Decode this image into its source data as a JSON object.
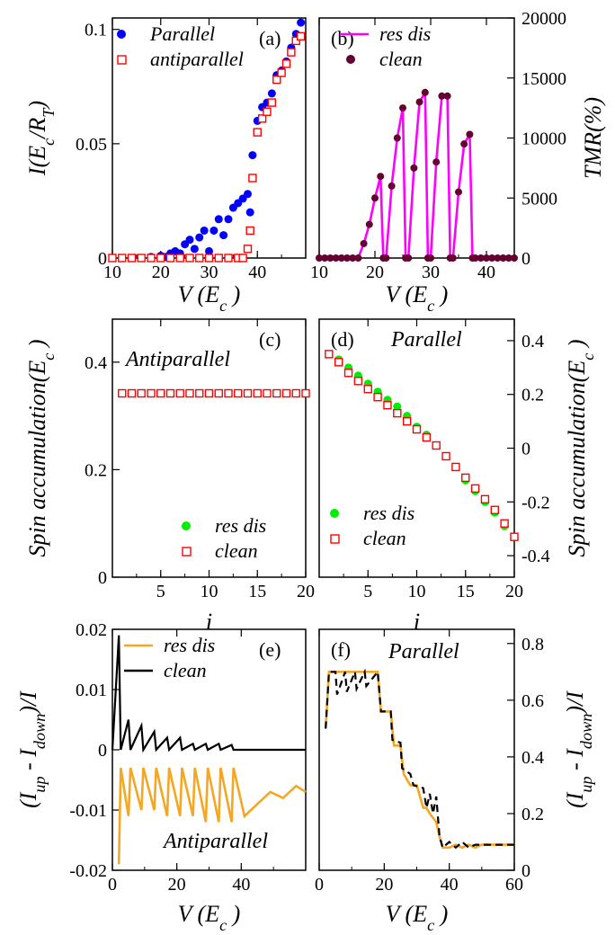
{
  "colors": {
    "blue": "#0000ff",
    "red": "#ff0000",
    "magenta": "#ff00ff",
    "maroon": "#660033",
    "green": "#00ee00",
    "orange": "#f5a623",
    "black": "#000000"
  },
  "chart_data": [
    {
      "id": "a",
      "type": "scatter",
      "panel_label": "(a)",
      "xlabel": "V (E_c )",
      "ylabel": "I(E_c/R_T)",
      "xlim": [
        10,
        50
      ],
      "ylim": [
        0,
        0.105
      ],
      "xticks": [
        10,
        20,
        30,
        40
      ],
      "yticks": [
        0,
        0.05,
        0.1
      ],
      "legend_position": "top-left",
      "series": [
        {
          "name": "Parallel",
          "marker": "circle",
          "color": "#0000ff",
          "x": [
            18,
            20,
            21,
            22,
            23,
            24,
            25,
            26,
            27,
            28,
            29,
            30,
            31,
            32,
            33,
            34,
            35,
            36,
            37,
            38,
            38.5,
            39,
            40,
            41,
            42,
            43,
            44,
            45,
            46,
            47,
            48,
            49
          ],
          "y": [
            0.0005,
            0.001,
            0.0005,
            0.002,
            0.003,
            0.002,
            0.006,
            0.008,
            0.004,
            0.009,
            0.012,
            0.003,
            0.012,
            0.017,
            0.01,
            0.017,
            0.022,
            0.024,
            0.026,
            0.028,
            0.02,
            0.045,
            0.06,
            0.066,
            0.068,
            0.072,
            0.08,
            0.082,
            0.086,
            0.092,
            0.098,
            0.103
          ]
        },
        {
          "name": "antiparallel",
          "marker": "square",
          "color": "#ff0000",
          "x": [
            10,
            12,
            14,
            16,
            18,
            20,
            22,
            24,
            26,
            28,
            30,
            32,
            34,
            36,
            37,
            38,
            38.5,
            39,
            40,
            41,
            42,
            43,
            44,
            45,
            46,
            47,
            48,
            49
          ],
          "y": [
            0,
            0,
            0,
            0,
            0,
            0,
            0,
            0,
            0,
            0,
            0,
            0,
            0,
            0,
            0,
            0.004,
            0.012,
            0.035,
            0.055,
            0.061,
            0.064,
            0.068,
            0.078,
            0.081,
            0.085,
            0.09,
            0.095,
            0.097
          ]
        }
      ]
    },
    {
      "id": "b",
      "type": "scatter",
      "panel_label": "(b)",
      "xlabel": "V (E_c )",
      "ylabel": "TMR(%)",
      "xlim": [
        10,
        45
      ],
      "ylim": [
        0,
        20000
      ],
      "xticks": [
        10,
        20,
        30,
        40
      ],
      "yticks": [
        0,
        5000,
        10000,
        15000,
        20000
      ],
      "legend_position": "top-center",
      "series": [
        {
          "name": "res dis",
          "style": "line",
          "color": "#ff00ff",
          "x": [
            10,
            17,
            18,
            19,
            20,
            21,
            21.5,
            22,
            23,
            24,
            25,
            25.5,
            26,
            27,
            28,
            29,
            29.5,
            30,
            31,
            32,
            33,
            33.5,
            34,
            35,
            36,
            37,
            37.5,
            38,
            40,
            45
          ],
          "y": [
            0,
            0,
            1200,
            2800,
            5000,
            6800,
            0,
            0,
            6000,
            10000,
            12500,
            0,
            0,
            7500,
            13000,
            13800,
            0,
            0,
            8000,
            13500,
            13500,
            0,
            0,
            5500,
            9500,
            10300,
            0,
            0,
            0,
            0
          ]
        },
        {
          "name": "clean",
          "style": "marker",
          "color": "#660033",
          "x": [
            10,
            11,
            12,
            13,
            14,
            15,
            16,
            17,
            18,
            19,
            20,
            21,
            21.5,
            22,
            23,
            24,
            25,
            25.5,
            26,
            27,
            28,
            29,
            29.5,
            30,
            31,
            32,
            33,
            33.5,
            34,
            35,
            36,
            37,
            37.5,
            38,
            39,
            40,
            41,
            42,
            43,
            44,
            45
          ],
          "y": [
            0,
            0,
            0,
            0,
            0,
            0,
            0,
            0,
            1200,
            2800,
            5000,
            6800,
            0,
            0,
            6000,
            10000,
            12500,
            0,
            0,
            7500,
            13000,
            13800,
            0,
            0,
            8000,
            13500,
            13500,
            0,
            0,
            5500,
            9500,
            10300,
            0,
            0,
            0,
            0,
            0,
            0,
            0,
            0,
            0
          ]
        }
      ]
    },
    {
      "id": "c",
      "type": "scatter",
      "panel_label": "(c)",
      "title": "Antiparallel",
      "xlabel": "i",
      "ylabel": "Spin accumulation(E_c )",
      "xlim": [
        0,
        20
      ],
      "ylim": [
        0,
        0.48
      ],
      "xticks": [
        5,
        10,
        15,
        20
      ],
      "yticks": [
        0,
        0.2,
        0.4
      ],
      "legend_position": "bottom-right",
      "series": [
        {
          "name": "res dis",
          "marker": "circle",
          "color": "#00ee00",
          "x": [
            1,
            2,
            3,
            4,
            5,
            6,
            7,
            8,
            9,
            10,
            11,
            12,
            13,
            14,
            15,
            16,
            17,
            18,
            19,
            20
          ],
          "y": [
            0.342,
            0.342,
            0.342,
            0.342,
            0.342,
            0.342,
            0.342,
            0.342,
            0.342,
            0.342,
            0.342,
            0.342,
            0.342,
            0.342,
            0.342,
            0.342,
            0.342,
            0.342,
            0.342,
            0.342
          ]
        },
        {
          "name": "clean",
          "marker": "square",
          "color": "#ff0000",
          "x": [
            1,
            2,
            3,
            4,
            5,
            6,
            7,
            8,
            9,
            10,
            11,
            12,
            13,
            14,
            15,
            16,
            17,
            18,
            19,
            20
          ],
          "y": [
            0.342,
            0.342,
            0.342,
            0.342,
            0.342,
            0.342,
            0.342,
            0.342,
            0.342,
            0.342,
            0.342,
            0.342,
            0.342,
            0.342,
            0.342,
            0.342,
            0.342,
            0.342,
            0.342,
            0.342
          ]
        }
      ]
    },
    {
      "id": "d",
      "type": "scatter",
      "panel_label": "(d)",
      "title": "Parallel",
      "xlabel": "i",
      "ylabel": "Spin accumulation(E_c )",
      "xlim": [
        0,
        20
      ],
      "ylim": [
        -0.48,
        0.48
      ],
      "xticks": [
        5,
        10,
        15,
        20
      ],
      "yticks": [
        -0.4,
        -0.2,
        0,
        0.2,
        0.4
      ],
      "legend_position": "bottom-left",
      "series": [
        {
          "name": "res dis",
          "marker": "circle",
          "color": "#00ee00",
          "x": [
            1,
            2,
            3,
            4,
            5,
            6,
            7,
            8,
            9,
            10,
            11,
            12,
            13,
            14,
            15,
            16,
            17,
            18,
            19,
            20
          ],
          "y": [
            0.35,
            0.33,
            0.3,
            0.27,
            0.24,
            0.21,
            0.18,
            0.155,
            0.12,
            0.08,
            0.05,
            0.01,
            -0.03,
            -0.07,
            -0.12,
            -0.16,
            -0.2,
            -0.24,
            -0.29,
            -0.33
          ]
        },
        {
          "name": "clean",
          "marker": "square",
          "color": "#ff0000",
          "x": [
            1,
            2,
            3,
            4,
            5,
            6,
            7,
            8,
            9,
            10,
            11,
            12,
            13,
            14,
            15,
            16,
            17,
            18,
            19,
            20
          ],
          "y": [
            0.35,
            0.32,
            0.28,
            0.25,
            0.22,
            0.19,
            0.16,
            0.13,
            0.1,
            0.07,
            0.04,
            0.01,
            -0.03,
            -0.07,
            -0.11,
            -0.15,
            -0.19,
            -0.23,
            -0.28,
            -0.33
          ]
        }
      ]
    },
    {
      "id": "e",
      "type": "line",
      "panel_label": "(e)",
      "title": "Antiparallel",
      "xlabel": "V (E_c )",
      "ylabel": "(I_up - I_down)/I",
      "xlim": [
        0,
        60
      ],
      "ylim": [
        -0.02,
        0.02
      ],
      "xticks": [
        0,
        20,
        40
      ],
      "yticks": [
        -0.02,
        -0.01,
        0,
        0.01,
        0.02
      ],
      "legend_position": "top-right",
      "series": [
        {
          "name": "res dis",
          "color": "#f5a623",
          "x": [
            2,
            2.6,
            5,
            5.6,
            9,
            9.6,
            13,
            13.6,
            17,
            17.6,
            21,
            21.6,
            25,
            25.6,
            29,
            29.6,
            33,
            33.6,
            37,
            37.6,
            41,
            45,
            49,
            53,
            57,
            60
          ],
          "y": [
            -0.019,
            -0.003,
            -0.011,
            -0.003,
            -0.01,
            -0.003,
            -0.01,
            -0.003,
            -0.011,
            -0.003,
            -0.011,
            -0.003,
            -0.011,
            -0.003,
            -0.012,
            -0.003,
            -0.012,
            -0.003,
            -0.012,
            -0.003,
            -0.011,
            -0.009,
            -0.007,
            -0.008,
            -0.006,
            -0.007
          ]
        },
        {
          "name": "clean",
          "color": "#000000",
          "x": [
            0,
            2,
            2.6,
            5,
            5.6,
            9,
            9.6,
            13,
            13.6,
            17,
            17.6,
            21,
            21.6,
            25,
            25.6,
            29,
            29.6,
            33,
            33.6,
            37,
            37.6,
            41,
            60
          ],
          "y": [
            0,
            0.019,
            0,
            0.005,
            0,
            0.004,
            0,
            0.003,
            0,
            0.002,
            0,
            0.002,
            0,
            0.001,
            0,
            0.001,
            0,
            0.001,
            0,
            0.0008,
            0,
            0,
            0
          ]
        }
      ]
    },
    {
      "id": "f",
      "type": "line",
      "panel_label": "(f)",
      "title": "Parallel",
      "xlabel": "V (E_c )",
      "ylabel": "(I_up - I_down)/I",
      "xlim": [
        0,
        60
      ],
      "ylim": [
        0,
        0.85
      ],
      "xticks": [
        0,
        20,
        40,
        60
      ],
      "yticks": [
        0,
        0.2,
        0.4,
        0.6,
        0.8
      ],
      "series": [
        {
          "name": "res dis",
          "color": "#f5a623",
          "x": [
            2,
            3,
            5,
            8,
            10,
            12,
            14,
            16,
            18,
            19,
            22,
            23,
            25,
            26,
            28,
            30,
            32,
            33,
            34,
            36,
            37,
            38,
            40,
            42,
            44,
            46,
            48,
            50,
            55,
            60
          ],
          "y": [
            0.5,
            0.7,
            0.7,
            0.7,
            0.7,
            0.7,
            0.7,
            0.7,
            0.7,
            0.56,
            0.56,
            0.44,
            0.44,
            0.34,
            0.3,
            0.3,
            0.22,
            0.22,
            0.2,
            0.17,
            0.12,
            0.08,
            0.08,
            0.09,
            0.08,
            0.09,
            0.08,
            0.09,
            0.09,
            0.09
          ]
        },
        {
          "name": "clean",
          "color": "#000000",
          "x": [
            2,
            3,
            5,
            5.5,
            8,
            8.5,
            11,
            11.5,
            14,
            14.5,
            18,
            19,
            22,
            22.5,
            25,
            25.5,
            28,
            29,
            32,
            33,
            34,
            35,
            36,
            37,
            38,
            40,
            42,
            44,
            46,
            48,
            50,
            55,
            60
          ],
          "y": [
            0.5,
            0.7,
            0.7,
            0.62,
            0.7,
            0.63,
            0.7,
            0.64,
            0.7,
            0.65,
            0.7,
            0.56,
            0.56,
            0.46,
            0.45,
            0.36,
            0.34,
            0.3,
            0.29,
            0.22,
            0.27,
            0.2,
            0.26,
            0.12,
            0.08,
            0.1,
            0.08,
            0.1,
            0.08,
            0.09,
            0.09,
            0.09,
            0.09
          ]
        }
      ]
    }
  ]
}
